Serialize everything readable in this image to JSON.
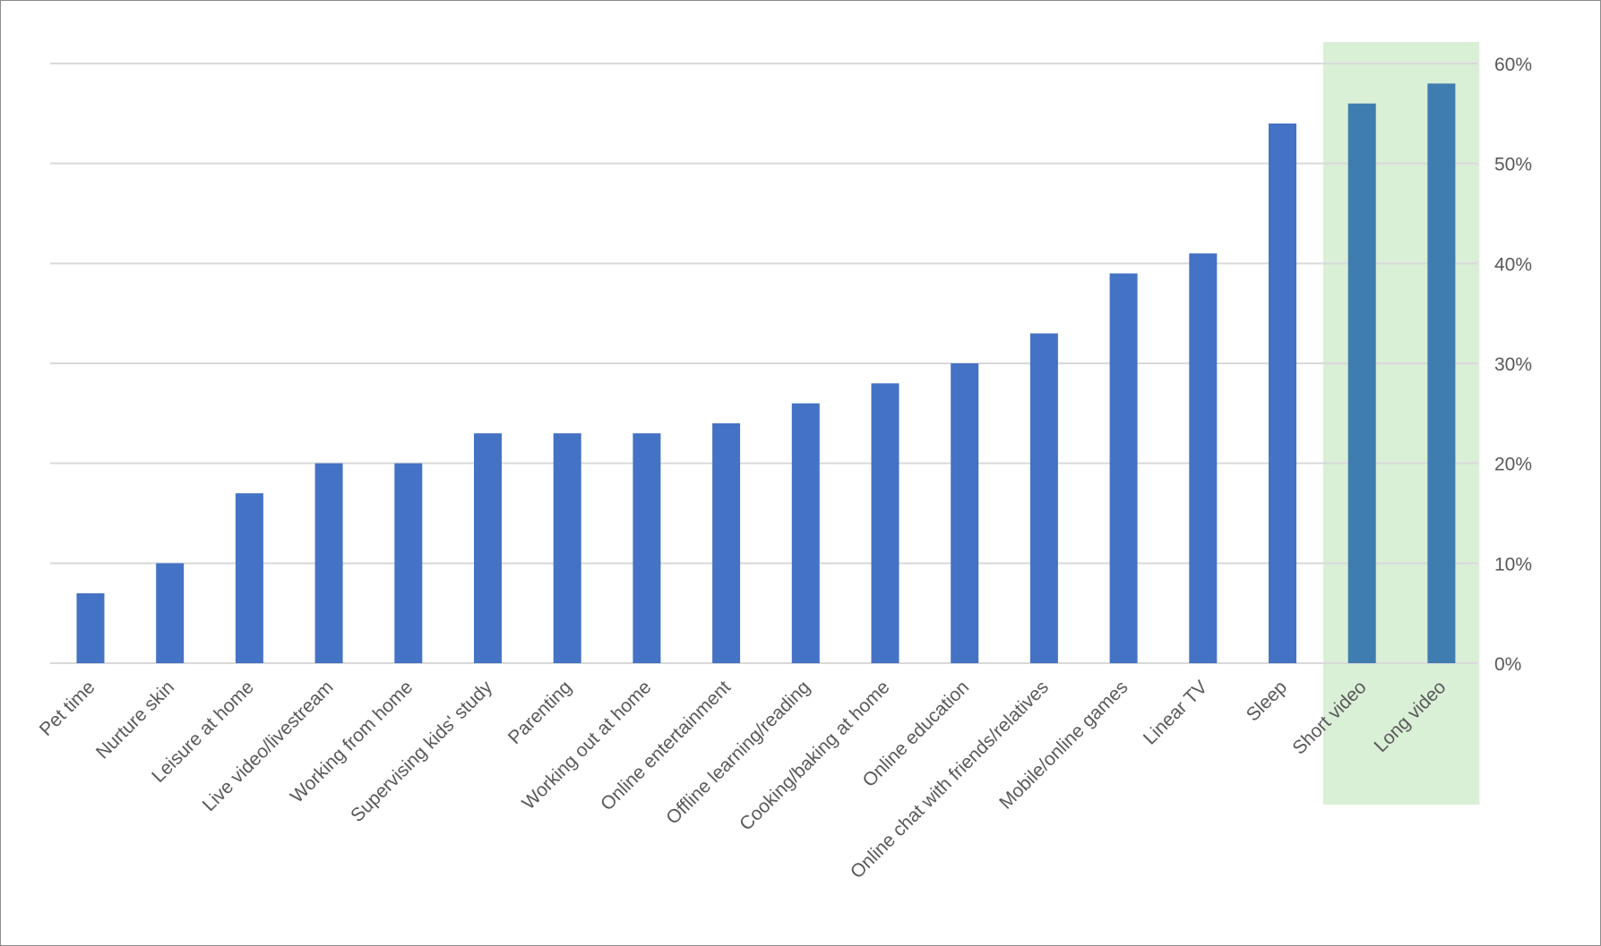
{
  "chart_data": {
    "type": "bar",
    "title": "",
    "xlabel": "",
    "ylabel": "",
    "ylim": [
      0,
      60
    ],
    "yticks": [
      0,
      10,
      20,
      30,
      40,
      50,
      60
    ],
    "ytick_labels": [
      "0%",
      "10%",
      "20%",
      "30%",
      "40%",
      "50%",
      "60%"
    ],
    "y_axis_side": "right",
    "grid": true,
    "legend": "none",
    "categories": [
      "Pet time",
      "Nurture skin",
      "Leisure at home",
      "Live video/livestream",
      "Working from home",
      "Supervising kids' study",
      "Parenting",
      "Working out at home",
      "Online entertainment",
      "Offline learning/reading",
      "Cooking/baking at home",
      "Online education",
      "Online chat with friends/relatives",
      "Mobile/online games",
      "Linear TV",
      "Sleep",
      "Short video",
      "Long video"
    ],
    "values": [
      7,
      10,
      17,
      20,
      20,
      23,
      23,
      23,
      24,
      26,
      28,
      30,
      33,
      39,
      41,
      54,
      56,
      58
    ],
    "highlighted_categories": [
      "Short video",
      "Long video"
    ],
    "colors": {
      "bar": "#4472c4",
      "bar_highlighted": "#3f7caf",
      "highlight_background": "#d9efd6",
      "gridline": "#d9d9d9",
      "tick_label": "#595959"
    }
  }
}
